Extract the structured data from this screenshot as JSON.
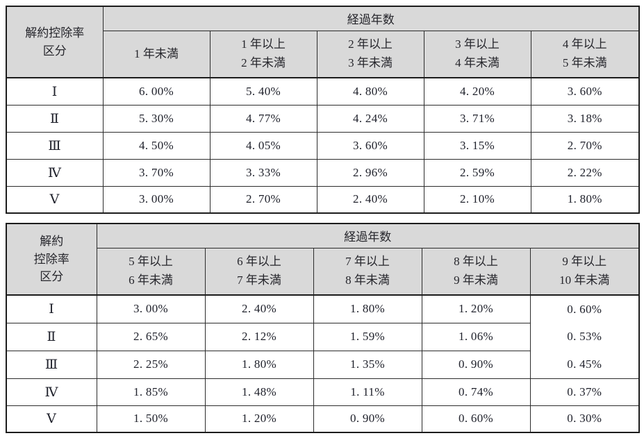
{
  "colors": {
    "header_background": "#d9d9d9",
    "border": "#2c2c2c",
    "outer_border": "#1c1c1c",
    "text": "#20222c",
    "page_background": "#ffffff"
  },
  "table1": {
    "corner": [
      "解約控除率",
      "区分"
    ],
    "span_header": "経過年数",
    "col_headers": [
      [
        "1 年未満"
      ],
      [
        "1 年以上",
        "2 年未満"
      ],
      [
        "2 年以上",
        "3 年未満"
      ],
      [
        "3 年以上",
        "4 年未満"
      ],
      [
        "4 年以上",
        "5 年未満"
      ]
    ],
    "rows": [
      {
        "label": "Ⅰ",
        "values": [
          "6. 00%",
          "5. 40%",
          "4. 80%",
          "4. 20%",
          "3. 60%"
        ]
      },
      {
        "label": "Ⅱ",
        "values": [
          "5. 30%",
          "4. 77%",
          "4. 24%",
          "3. 71%",
          "3. 18%"
        ]
      },
      {
        "label": "Ⅲ",
        "values": [
          "4. 50%",
          "4. 05%",
          "3. 60%",
          "3. 15%",
          "2. 70%"
        ]
      },
      {
        "label": "Ⅳ",
        "values": [
          "3. 70%",
          "3. 33%",
          "2. 96%",
          "2. 59%",
          "2. 22%"
        ]
      },
      {
        "label": "Ⅴ",
        "values": [
          "3. 00%",
          "2. 70%",
          "2. 40%",
          "2. 10%",
          "1. 80%"
        ]
      }
    ]
  },
  "table2": {
    "corner": [
      "解約",
      "控除率",
      "区分"
    ],
    "span_header": "経過年数",
    "col_headers": [
      [
        "5 年以上",
        "6 年未満"
      ],
      [
        "6 年以上",
        "7 年未満"
      ],
      [
        "7 年以上",
        "8 年未満"
      ],
      [
        "8 年以上",
        "9 年未満"
      ],
      [
        "9 年以上",
        "10 年未満"
      ]
    ],
    "rows": [
      {
        "label": "Ⅰ",
        "values": [
          "3. 00%",
          "2. 40%",
          "1. 80%",
          "1. 20%",
          "0. 60%"
        ]
      },
      {
        "label": "Ⅱ",
        "values": [
          "2. 65%",
          "2. 12%",
          "1. 59%",
          "1. 06%",
          "0. 53%"
        ]
      },
      {
        "label": "Ⅲ",
        "values": [
          "2. 25%",
          "1. 80%",
          "1. 35%",
          "0. 90%",
          "0. 45%"
        ]
      },
      {
        "label": "Ⅳ",
        "values": [
          "1. 85%",
          "1. 48%",
          "1. 11%",
          "0. 74%",
          "0. 37%"
        ]
      },
      {
        "label": "Ⅴ",
        "values": [
          "1. 50%",
          "1. 20%",
          "0. 90%",
          "0. 60%",
          "0. 30%"
        ]
      }
    ]
  }
}
